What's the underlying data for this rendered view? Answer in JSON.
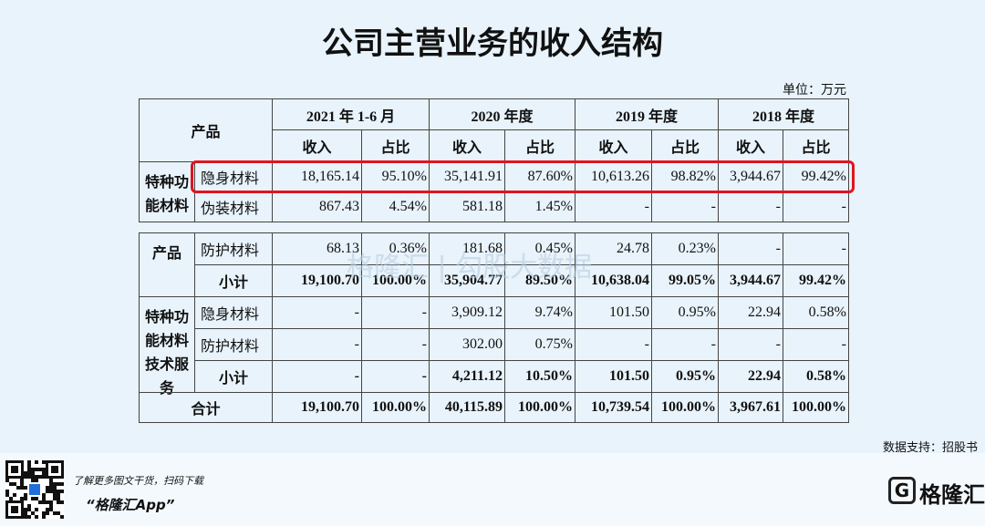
{
  "title": "公司主营业务的收入结构",
  "unit": "单位：万元",
  "header": {
    "product": "产品",
    "periods": [
      "2021 年 1-6 月",
      "2020 年度",
      "2019 年度",
      "2018 年度"
    ],
    "subs": [
      "收入",
      "占比",
      "收入",
      "占比",
      "收入",
      "占比",
      "收入",
      "占比"
    ]
  },
  "table1": {
    "group": "特种功能材料",
    "rows": [
      {
        "item": "隐身材料",
        "cells": [
          "18,165.14",
          "95.10%",
          "35,141.91",
          "87.60%",
          "10,613.26",
          "98.82%",
          "3,944.67",
          "99.42%"
        ]
      },
      {
        "item": "伪装材料",
        "cells": [
          "867.43",
          "4.54%",
          "581.18",
          "1.45%",
          "-",
          "-",
          "-",
          "-"
        ]
      }
    ]
  },
  "table2": {
    "groups": [
      {
        "label": "产品",
        "rows": [
          {
            "item": "防护材料",
            "cells": [
              "68.13",
              "0.36%",
              "181.68",
              "0.45%",
              "24.78",
              "0.23%",
              "-",
              "-"
            ]
          },
          {
            "item": "小计",
            "cells": [
              "19,100.70",
              "100.00%",
              "35,904.77",
              "89.50%",
              "10,638.04",
              "99.05%",
              "3,944.67",
              "99.42%"
            ]
          }
        ]
      },
      {
        "label": "特种功能材料技术服务",
        "rows": [
          {
            "item": "隐身材料",
            "cells": [
              "-",
              "-",
              "3,909.12",
              "9.74%",
              "101.50",
              "0.95%",
              "22.94",
              "0.58%"
            ]
          },
          {
            "item": "防护材料",
            "cells": [
              "-",
              "-",
              "302.00",
              "0.75%",
              "-",
              "-",
              "-",
              "-"
            ]
          },
          {
            "item": "小计",
            "cells": [
              "-",
              "-",
              "4,211.12",
              "10.50%",
              "101.50",
              "0.95%",
              "22.94",
              "0.58%"
            ]
          }
        ]
      }
    ],
    "total": {
      "label": "合计",
      "cells": [
        "19,100.70",
        "100.00%",
        "40,115.89",
        "100.00%",
        "10,739.54",
        "100.00%",
        "3,967.61",
        "100.00%"
      ]
    }
  },
  "watermark": "格隆汇 | 勾股大数据",
  "source": "数据支持：招股书",
  "footer": {
    "tagline": "了解更多图文干货，扫码下载",
    "app": "“格隆汇App”",
    "logo": "格隆汇"
  }
}
